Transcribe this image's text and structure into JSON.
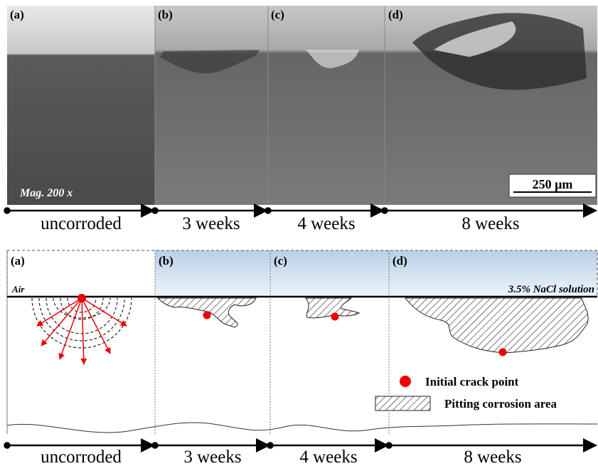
{
  "top": {
    "panel_labels": [
      "(a)",
      "(b)",
      "(c)",
      "(d)"
    ],
    "magnification": "Mag. 200 x",
    "scale_bar": "250 μm",
    "timeline": [
      "uncorroded",
      "3 weeks",
      "4 weeks",
      "8 weeks"
    ]
  },
  "bottom": {
    "panel_labels": [
      "(a)",
      "(b)",
      "(c)",
      "(d)"
    ],
    "medium_air": "Air",
    "medium_solution": "3.5% NaCl solution",
    "legend": [
      "Initial crack point",
      "Pitting corrosion area"
    ],
    "timeline": [
      "uncorroded",
      "3 weeks",
      "4 weeks",
      "8 weeks"
    ]
  }
}
